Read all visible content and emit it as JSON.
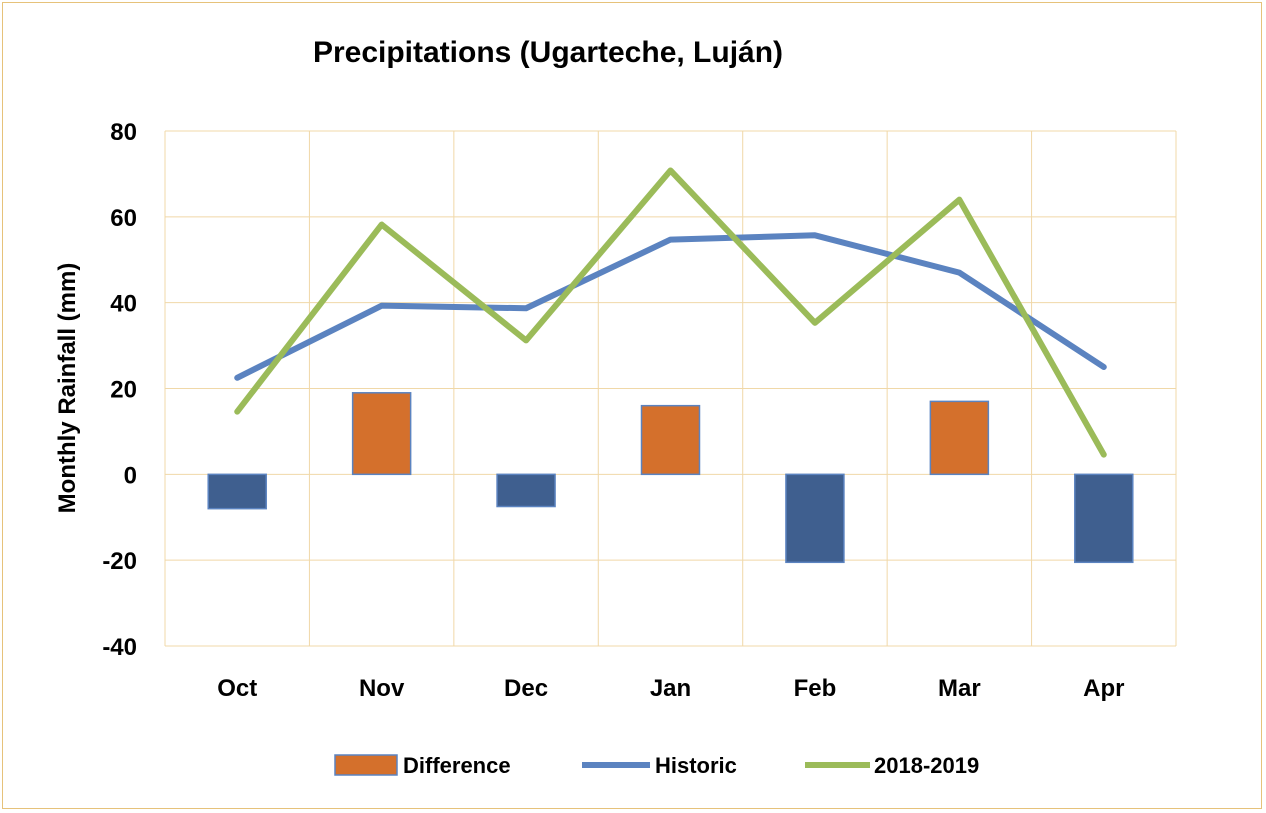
{
  "chart_data": {
    "type": "bar",
    "title": "Precipitations (Ugarteche, Luján)",
    "xlabel": "",
    "ylabel": "Monthly Rainfall (mm)",
    "ylim": [
      -40,
      80
    ],
    "yticks": [
      -40,
      -20,
      0,
      20,
      40,
      60,
      80
    ],
    "ytick_labels": [
      "-40",
      "-20",
      "0",
      "20",
      "40",
      "60",
      "80"
    ],
    "grid": true,
    "legend_position": "bottom",
    "categories": [
      "Oct",
      "Nov",
      "Dec",
      "Jan",
      "Feb",
      "Mar",
      "Apr"
    ],
    "series": [
      {
        "name": "Difference",
        "kind": "bar",
        "values": [
          -8,
          19,
          -7.5,
          16,
          -20.5,
          17,
          -20.5
        ],
        "color_positive": "#d4702c",
        "color_negative": "#3f5f8f"
      },
      {
        "name": "Historic",
        "kind": "line",
        "values": [
          22.5,
          39.3,
          38.7,
          54.7,
          55.7,
          47,
          25
        ],
        "color": "#5b83c0"
      },
      {
        "name": "2018-2019",
        "kind": "line",
        "values": [
          14.6,
          58.2,
          31.2,
          70.8,
          35.3,
          64,
          4.6
        ],
        "color": "#9bbb59"
      }
    ]
  }
}
